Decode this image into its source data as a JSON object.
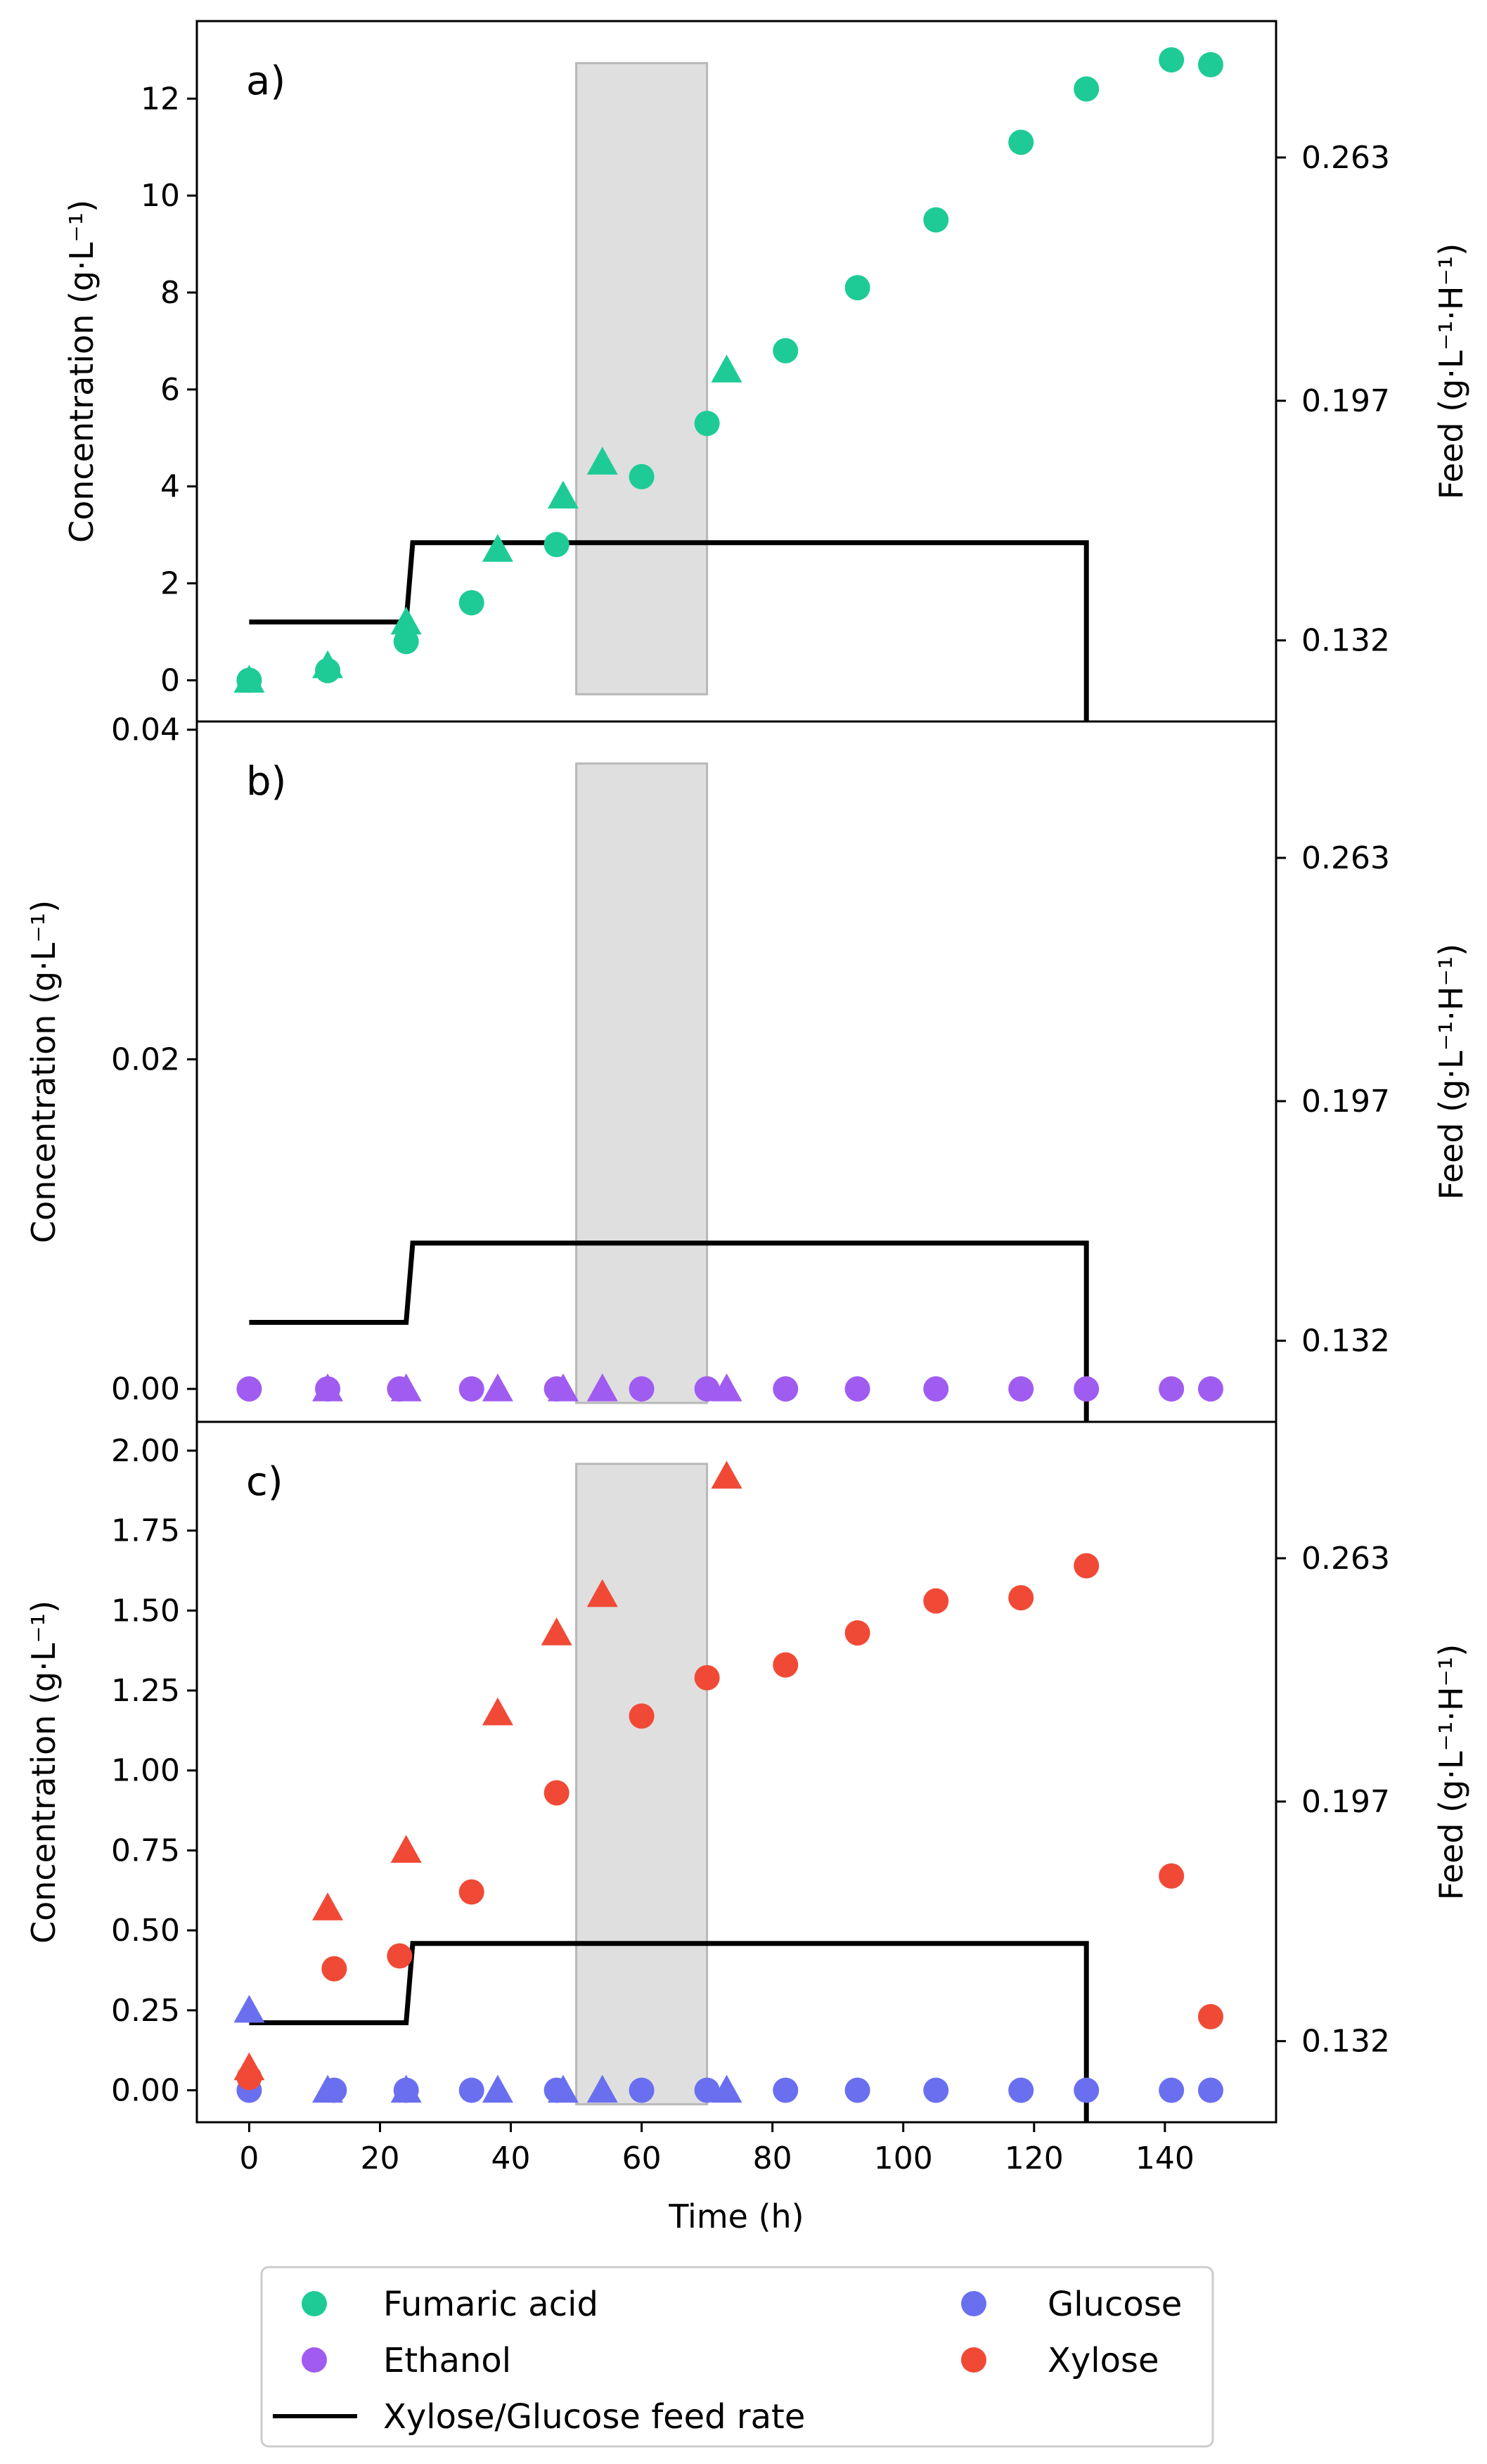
{
  "chart_data": [
    {
      "panel_label": "a)",
      "type": "scatter",
      "ylabel": "Concentration (g·L⁻¹)",
      "y2label": "Feed (g·L⁻¹·H⁻¹)",
      "ylim": [
        -0.85,
        13.6
      ],
      "yticks": [
        0,
        2,
        4,
        6,
        8,
        10,
        12
      ],
      "ytick_labels": [
        "0",
        "2",
        "4",
        "6",
        "8",
        "10",
        "12"
      ],
      "y2ticks": [
        0.132,
        0.197,
        0.263
      ],
      "y2tick_labels": [
        "0.132",
        "0.197",
        "0.263"
      ],
      "y2lim": [
        0.11,
        0.3
      ],
      "xlim": [
        -8,
        157
      ],
      "shaded_region": [
        50,
        70
      ],
      "series": [
        {
          "name": "Fumaric acid",
          "marker": "circle",
          "x": [
            0,
            12,
            24,
            34,
            47,
            60,
            70,
            82,
            93,
            105,
            118,
            128,
            141,
            147
          ],
          "values": [
            0,
            0.2,
            0.8,
            1.6,
            2.8,
            4.2,
            5.3,
            6.8,
            8.1,
            9.5,
            11.1,
            12.2,
            12.8,
            12.7
          ]
        },
        {
          "name": "Fumaric acid (triangle)",
          "marker": "triangle",
          "x": [
            0,
            12,
            24,
            38,
            48,
            54,
            73
          ],
          "values": [
            0,
            0.3,
            1.2,
            2.7,
            3.8,
            4.5,
            6.4
          ]
        }
      ],
      "feed": {
        "name": "Xylose/Glucose feed rate",
        "segments": [
          [
            0,
            0.137
          ],
          [
            24,
            0.137
          ],
          [
            25,
            0.1585
          ],
          [
            128,
            0.1585
          ],
          [
            128,
            0.11
          ]
        ]
      }
    },
    {
      "panel_label": "b)",
      "type": "scatter",
      "ylabel": "Concentration (g·L⁻¹)",
      "y2label": "Feed (g·L⁻¹·H⁻¹)",
      "ylim": [
        -0.002,
        0.0405
      ],
      "yticks": [
        0,
        0.02,
        0.04
      ],
      "ytick_labels": [
        "0.00",
        "0.02",
        "0.04"
      ],
      "y2ticks": [
        0.132,
        0.197,
        0.263
      ],
      "y2tick_labels": [
        "0.132",
        "0.197",
        "0.263"
      ],
      "y2lim": [
        0.11,
        0.3
      ],
      "xlim": [
        -8,
        157
      ],
      "shaded_region": [
        50,
        70
      ],
      "series": [
        {
          "name": "Ethanol",
          "marker": "circle",
          "x": [
            0,
            12,
            23,
            34,
            47,
            60,
            70,
            82,
            93,
            105,
            118,
            128,
            141,
            147
          ],
          "values": [
            0,
            0,
            0,
            0,
            0,
            0,
            0,
            0,
            0,
            0,
            0,
            0,
            0,
            0
          ]
        },
        {
          "name": "Ethanol (triangle)",
          "marker": "triangle",
          "x": [
            12,
            24,
            38,
            48,
            54,
            73
          ],
          "values": [
            0,
            0,
            0,
            0,
            0,
            0
          ]
        }
      ],
      "feed": {
        "name": "Xylose/Glucose feed rate",
        "segments": [
          [
            0,
            0.137
          ],
          [
            24,
            0.137
          ],
          [
            25,
            0.1585
          ],
          [
            128,
            0.1585
          ],
          [
            128,
            0.11
          ]
        ]
      }
    },
    {
      "panel_label": "c)",
      "type": "scatter",
      "ylabel": "Concentration (g·L⁻¹)",
      "y2label": "Feed (g·L⁻¹·H⁻¹)",
      "xlabel": "Time (h)",
      "ylim": [
        -0.1,
        2.09
      ],
      "yticks": [
        0,
        0.25,
        0.5,
        0.75,
        1.0,
        1.25,
        1.5,
        1.75,
        2.0
      ],
      "ytick_labels": [
        "0.00",
        "0.25",
        "0.50",
        "0.75",
        "1.00",
        "1.25",
        "1.50",
        "1.75",
        "2.00"
      ],
      "y2ticks": [
        0.132,
        0.197,
        0.263
      ],
      "y2tick_labels": [
        "0.132",
        "0.197",
        "0.263"
      ],
      "y2lim": [
        0.11,
        0.3
      ],
      "xlim": [
        -8,
        157
      ],
      "xticks": [
        0,
        20,
        40,
        60,
        80,
        100,
        120,
        140
      ],
      "xtick_labels": [
        "0",
        "20",
        "40",
        "60",
        "80",
        "100",
        "120",
        "140"
      ],
      "shaded_region": [
        50,
        70
      ],
      "series": [
        {
          "name": "Glucose",
          "marker": "circle",
          "x": [
            0,
            13,
            24,
            34,
            47,
            60,
            70,
            82,
            93,
            105,
            118,
            128,
            141,
            147
          ],
          "values": [
            0,
            0,
            0,
            0,
            0,
            0,
            0,
            0,
            0,
            0,
            0,
            0,
            0,
            0
          ]
        },
        {
          "name": "Glucose (triangle)",
          "marker": "triangle",
          "x": [
            0,
            12,
            24,
            38,
            48,
            54,
            73
          ],
          "values": [
            0.25,
            0,
            0,
            0,
            0,
            0,
            0
          ]
        },
        {
          "name": "Xylose",
          "marker": "circle",
          "x": [
            0,
            13,
            23,
            34,
            47,
            60,
            70,
            82,
            93,
            105,
            118,
            128,
            141,
            147
          ],
          "values": [
            0.04,
            0.38,
            0.42,
            0.62,
            0.93,
            1.17,
            1.29,
            1.33,
            1.43,
            1.53,
            1.54,
            1.64,
            0.67,
            0.23
          ]
        },
        {
          "name": "Xylose (triangle)",
          "marker": "triangle",
          "x": [
            0,
            12,
            24,
            38,
            47,
            54,
            73
          ],
          "values": [
            0.07,
            0.57,
            0.75,
            1.18,
            1.43,
            1.55,
            1.92
          ]
        }
      ],
      "feed": {
        "name": "Xylose/Glucose feed rate",
        "segments": [
          [
            0,
            0.137
          ],
          [
            24,
            0.137
          ],
          [
            25,
            0.1585
          ],
          [
            128,
            0.1585
          ],
          [
            128,
            0.11
          ]
        ]
      }
    }
  ],
  "legend": {
    "placement": "bottom",
    "items": [
      {
        "label": "Fumaric acid",
        "type": "marker",
        "color": "#1ecb97"
      },
      {
        "label": "Glucose",
        "type": "marker",
        "color": "#6a6ff0"
      },
      {
        "label": "Ethanol",
        "type": "marker",
        "color": "#a05cf0"
      },
      {
        "label": "Xylose",
        "type": "marker",
        "color": "#f04a36"
      },
      {
        "label": "Xylose/Glucose feed rate",
        "type": "line",
        "color": "#000000"
      }
    ]
  },
  "colors": {
    "Fumaric acid": "#1ecb97",
    "Ethanol": "#a05cf0",
    "Glucose": "#6a6ff0",
    "Xylose": "#f04a36",
    "feed": "#000000",
    "shade": "#dcdcdc"
  }
}
